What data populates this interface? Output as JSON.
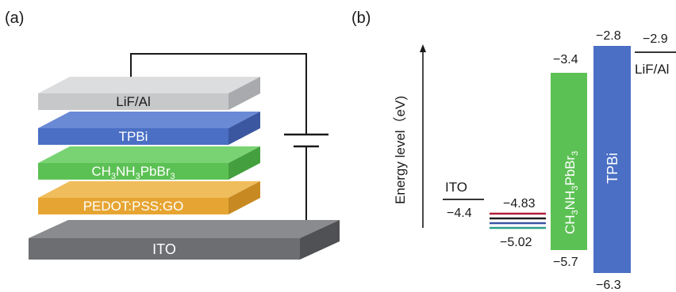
{
  "panel_a": {
    "label": "(a)",
    "layers": [
      {
        "label": "LiF/Al",
        "color": "#c7c8ca"
      },
      {
        "label": "TPBi",
        "color": "#4a6fc4"
      },
      {
        "label": "CH3NH3PbBr3",
        "label_parts": [
          "CH",
          "3",
          "NH",
          "3",
          "PbBr",
          "3"
        ],
        "color": "#5cc154"
      },
      {
        "label": "PEDOT:PSS:GO",
        "color": "#e6a532"
      },
      {
        "label": "ITO",
        "color": "#6d6e71"
      }
    ]
  },
  "panel_b": {
    "label": "(b)",
    "y_axis_label": "Energy level（eV)",
    "ito": {
      "label": "ITO",
      "level": "−4.4"
    },
    "pedot": {
      "top": "−4.83",
      "bottom": "−5.02",
      "line_colors": [
        "#b0203a",
        "#1f1f1f",
        "#3b55a5",
        "#2aa08a"
      ]
    },
    "perovskite": {
      "label_parts": [
        "CH",
        "3",
        "NH",
        "3",
        "PbBr",
        "3"
      ],
      "top": "−3.4",
      "bottom": "−5.7",
      "color": "#5cc154"
    },
    "tpbi": {
      "label": "TPBi",
      "top": "−2.8",
      "bottom": "−6.3",
      "color": "#4a6fc4"
    },
    "lifal": {
      "label": "LiF/Al",
      "level": "−2.9"
    }
  }
}
